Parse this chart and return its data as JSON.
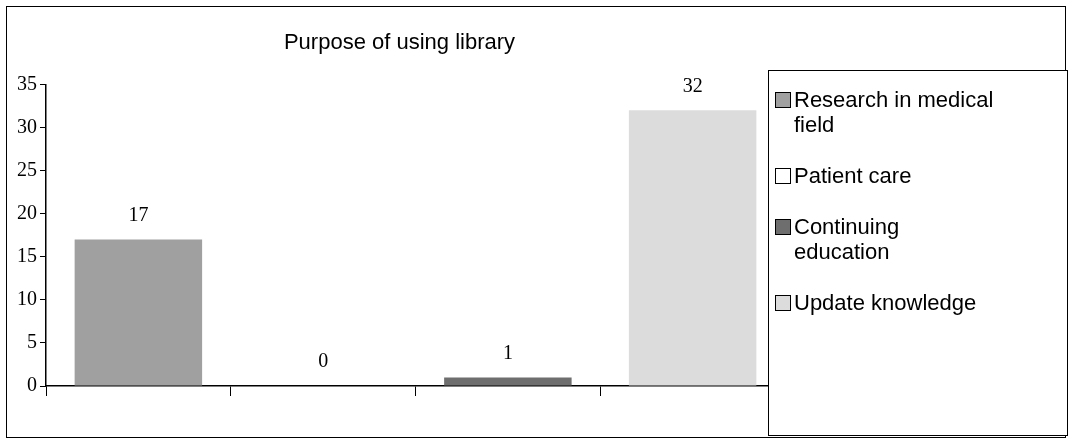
{
  "chart_data": {
    "type": "bar",
    "title": "Purpose of using library",
    "categories": [
      null,
      null,
      null,
      null
    ],
    "series": [
      {
        "name": "Research in medical field",
        "color": "#a0a0a0",
        "values": [
          17,
          null,
          null,
          null
        ]
      },
      {
        "name": "Patient care",
        "color": "#ffffff",
        "values": [
          null,
          0,
          null,
          null
        ]
      },
      {
        "name": "Continuing education",
        "color": "#6e6e6e",
        "values": [
          null,
          null,
          1,
          null
        ]
      },
      {
        "name": "Update knowledge",
        "color": "#dcdcdc",
        "values": [
          null,
          null,
          null,
          32
        ]
      }
    ],
    "ylim": [
      0,
      35
    ],
    "yticks": [
      0,
      5,
      10,
      15,
      20,
      25,
      30,
      35
    ],
    "grid": false,
    "legend": "right",
    "data_labels": true,
    "tick_labels": "y"
  }
}
